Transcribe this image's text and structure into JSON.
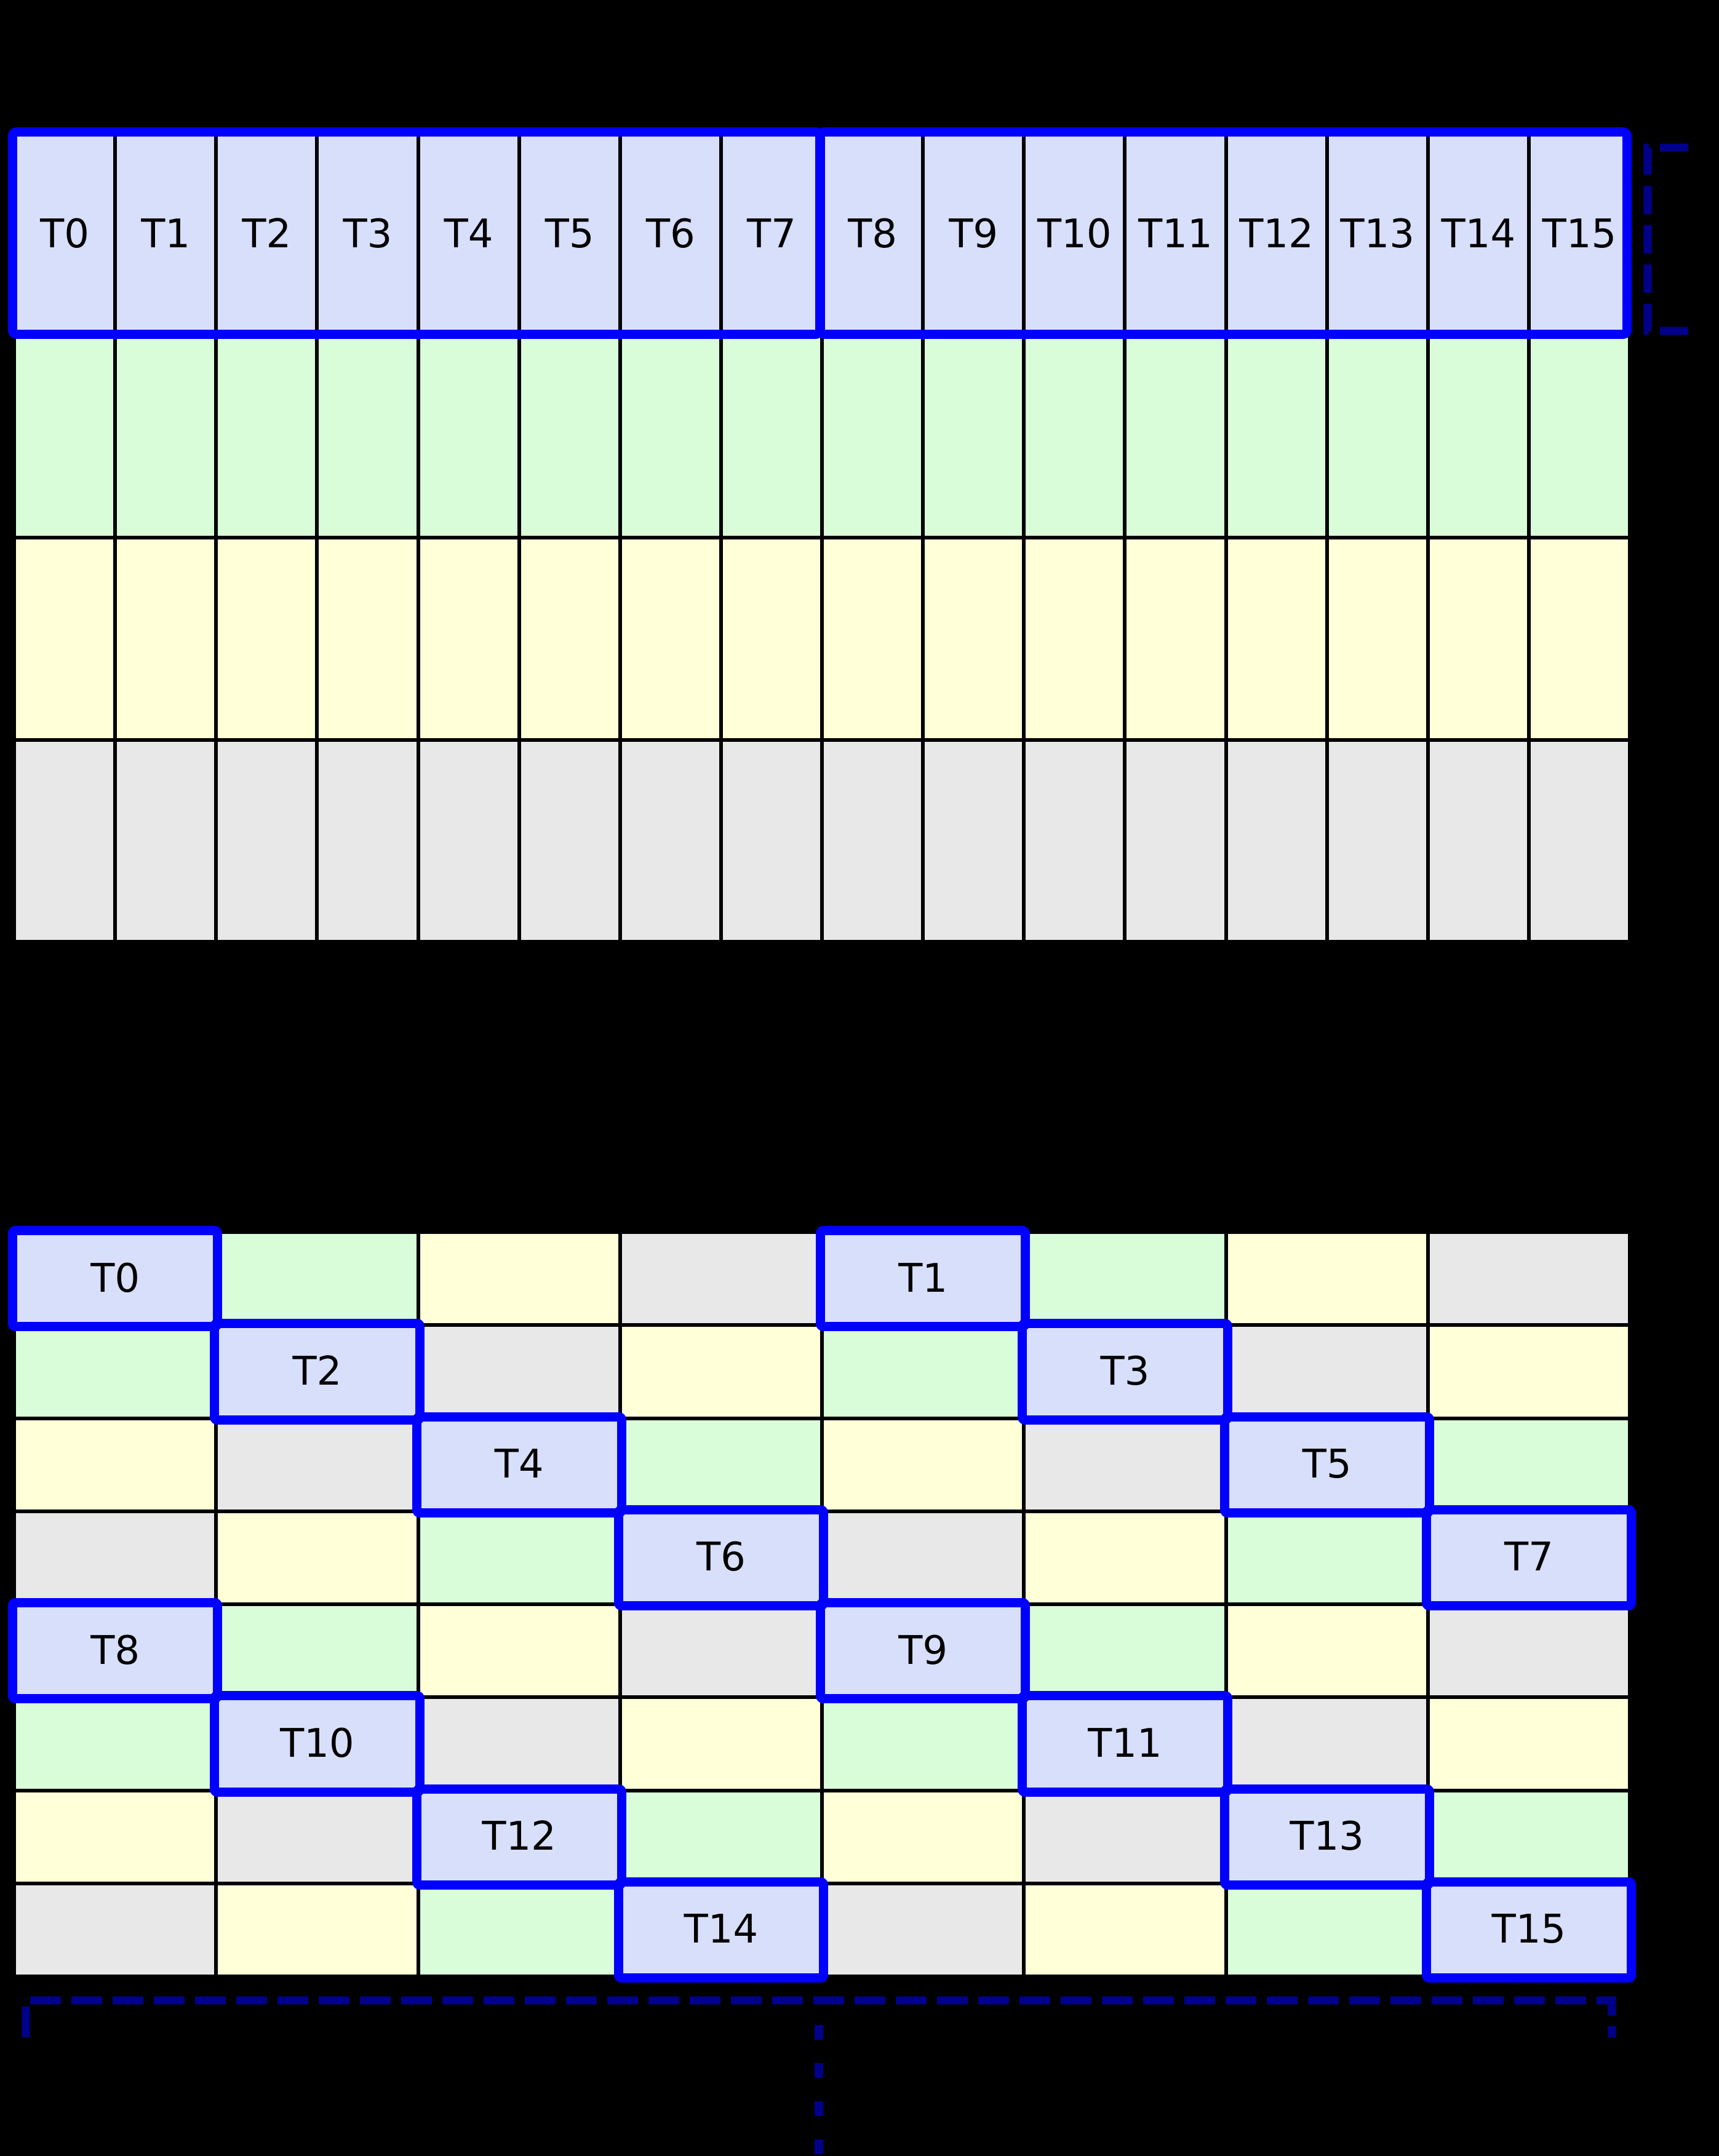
{
  "colors": {
    "canvas_bg": "#000000",
    "grid_line": "#000000",
    "cell_lavender": "#d8dffa",
    "cell_green": "#d9fcd9",
    "cell_yellow": "#ffffd8",
    "cell_gray": "#e8e8e8",
    "highlight_blue": "#0000ff",
    "bracket_navy": "#00008b",
    "label_text": "#000000"
  },
  "top_grid": {
    "cols": 16,
    "rows": 4,
    "thread_labels": [
      "T0",
      "T1",
      "T2",
      "T3",
      "T4",
      "T5",
      "T6",
      "T7",
      "T8",
      "T9",
      "T10",
      "T11",
      "T12",
      "T13",
      "T14",
      "T15"
    ],
    "row_fills": [
      "lavender",
      "green",
      "yellow",
      "gray"
    ],
    "warp_boxes": [
      {
        "name": "threads-t0-t7",
        "first_col": 0,
        "last_col": 7
      },
      {
        "name": "threads-t8-t15",
        "first_col": 8,
        "last_col": 15
      }
    ]
  },
  "bottom_grid": {
    "cols": 8,
    "rows": 8,
    "cells": [
      [
        "T0",
        "green",
        "yellow",
        "gray",
        "T1",
        "green",
        "yellow",
        "gray"
      ],
      [
        "green",
        "T2",
        "gray",
        "yellow",
        "green",
        "T3",
        "gray",
        "yellow"
      ],
      [
        "yellow",
        "gray",
        "T4",
        "green",
        "yellow",
        "gray",
        "T5",
        "green"
      ],
      [
        "gray",
        "yellow",
        "green",
        "T6",
        "gray",
        "yellow",
        "green",
        "T7"
      ],
      [
        "T8",
        "green",
        "yellow",
        "gray",
        "T9",
        "green",
        "yellow",
        "gray"
      ],
      [
        "green",
        "T10",
        "gray",
        "yellow",
        "green",
        "T11",
        "gray",
        "yellow"
      ],
      [
        "yellow",
        "gray",
        "T12",
        "green",
        "yellow",
        "gray",
        "T13",
        "green"
      ],
      [
        "gray",
        "yellow",
        "green",
        "T14",
        "gray",
        "yellow",
        "green",
        "T15"
      ]
    ]
  },
  "annotations": {
    "right_bracket": {
      "shape": "dashed-square-bracket-opening-right",
      "spans": "top grid row 1"
    },
    "bottom_bracket": {
      "shape": "dashed-square-bracket-opening-down",
      "spans": "bottom grid full width"
    },
    "vertical_ellipsis": {
      "shape": "dashed-vertical-line",
      "meaning": "pattern continues below"
    }
  }
}
